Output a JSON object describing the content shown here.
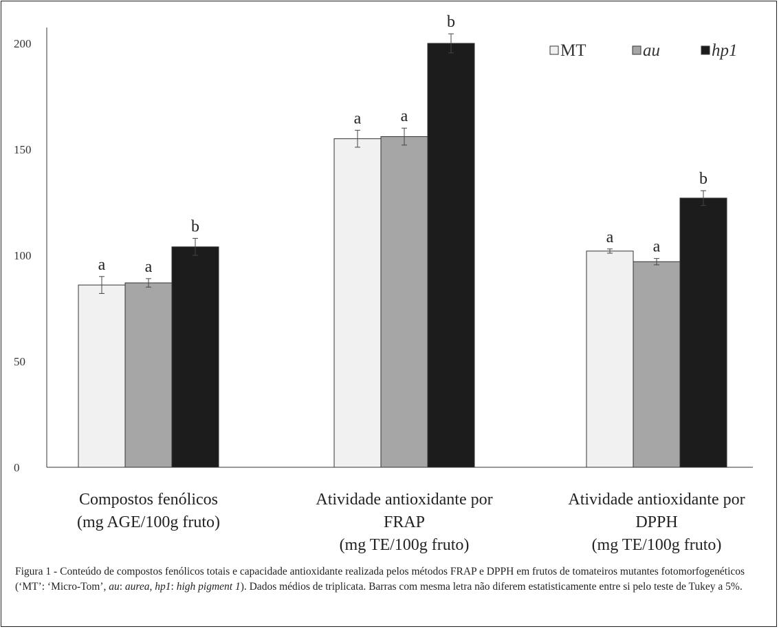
{
  "chart_data": {
    "type": "bar",
    "categories": [
      [
        "Compostos fenólicos",
        "(mg AGE/100g  fruto)"
      ],
      [
        "Atividade antioxidante por",
        "FRAP",
        "(mg TE/100g  fruto)"
      ],
      [
        "Atividade antioxidante por",
        "DPPH",
        "(mg TE/100g  fruto)"
      ]
    ],
    "series": [
      {
        "name": "MT",
        "italic": false,
        "color": "#f1f1f1",
        "values": [
          86,
          155,
          102
        ],
        "errors": [
          4,
          4,
          1
        ],
        "letters": [
          "a",
          "a",
          "a"
        ]
      },
      {
        "name": "au",
        "italic": true,
        "color": "#a6a6a6",
        "values": [
          87,
          156,
          97
        ],
        "errors": [
          2,
          4,
          1.5
        ],
        "letters": [
          "a",
          "a",
          "a"
        ]
      },
      {
        "name": "hp1",
        "italic": true,
        "color": "#1c1c1c",
        "values": [
          104,
          200,
          127
        ],
        "errors": [
          4,
          4.5,
          3.5
        ],
        "letters": [
          "b",
          "b",
          "b"
        ]
      }
    ],
    "ylim": [
      0,
      200
    ],
    "yticks": [
      "0",
      "50",
      "100",
      "150",
      "200"
    ],
    "grid": false,
    "legend_position": "top-right",
    "xlabel": "",
    "ylabel": ""
  },
  "caption": {
    "lead": "Figura 1 -",
    "parts": [
      {
        "t": " Conteúdo de compostos fenólicos totais e capacidade antioxidante realizada pelos métodos FRAP e DPPH em frutos de tomateiros mutantes fotomorfogenéticos (‘MT’: ‘Micro-Tom’, ",
        "i": false
      },
      {
        "t": "au",
        "i": true
      },
      {
        "t": ": ",
        "i": false
      },
      {
        "t": "aurea",
        "i": true
      },
      {
        "t": ", ",
        "i": false
      },
      {
        "t": "hp1",
        "i": true
      },
      {
        "t": ": ",
        "i": false
      },
      {
        "t": "high pigment 1",
        "i": true
      },
      {
        "t": "). Dados médios de triplicata. Barras com mesma letra não diferem estatisticamente entre si pelo teste de Tukey a 5%.",
        "i": false
      }
    ]
  }
}
